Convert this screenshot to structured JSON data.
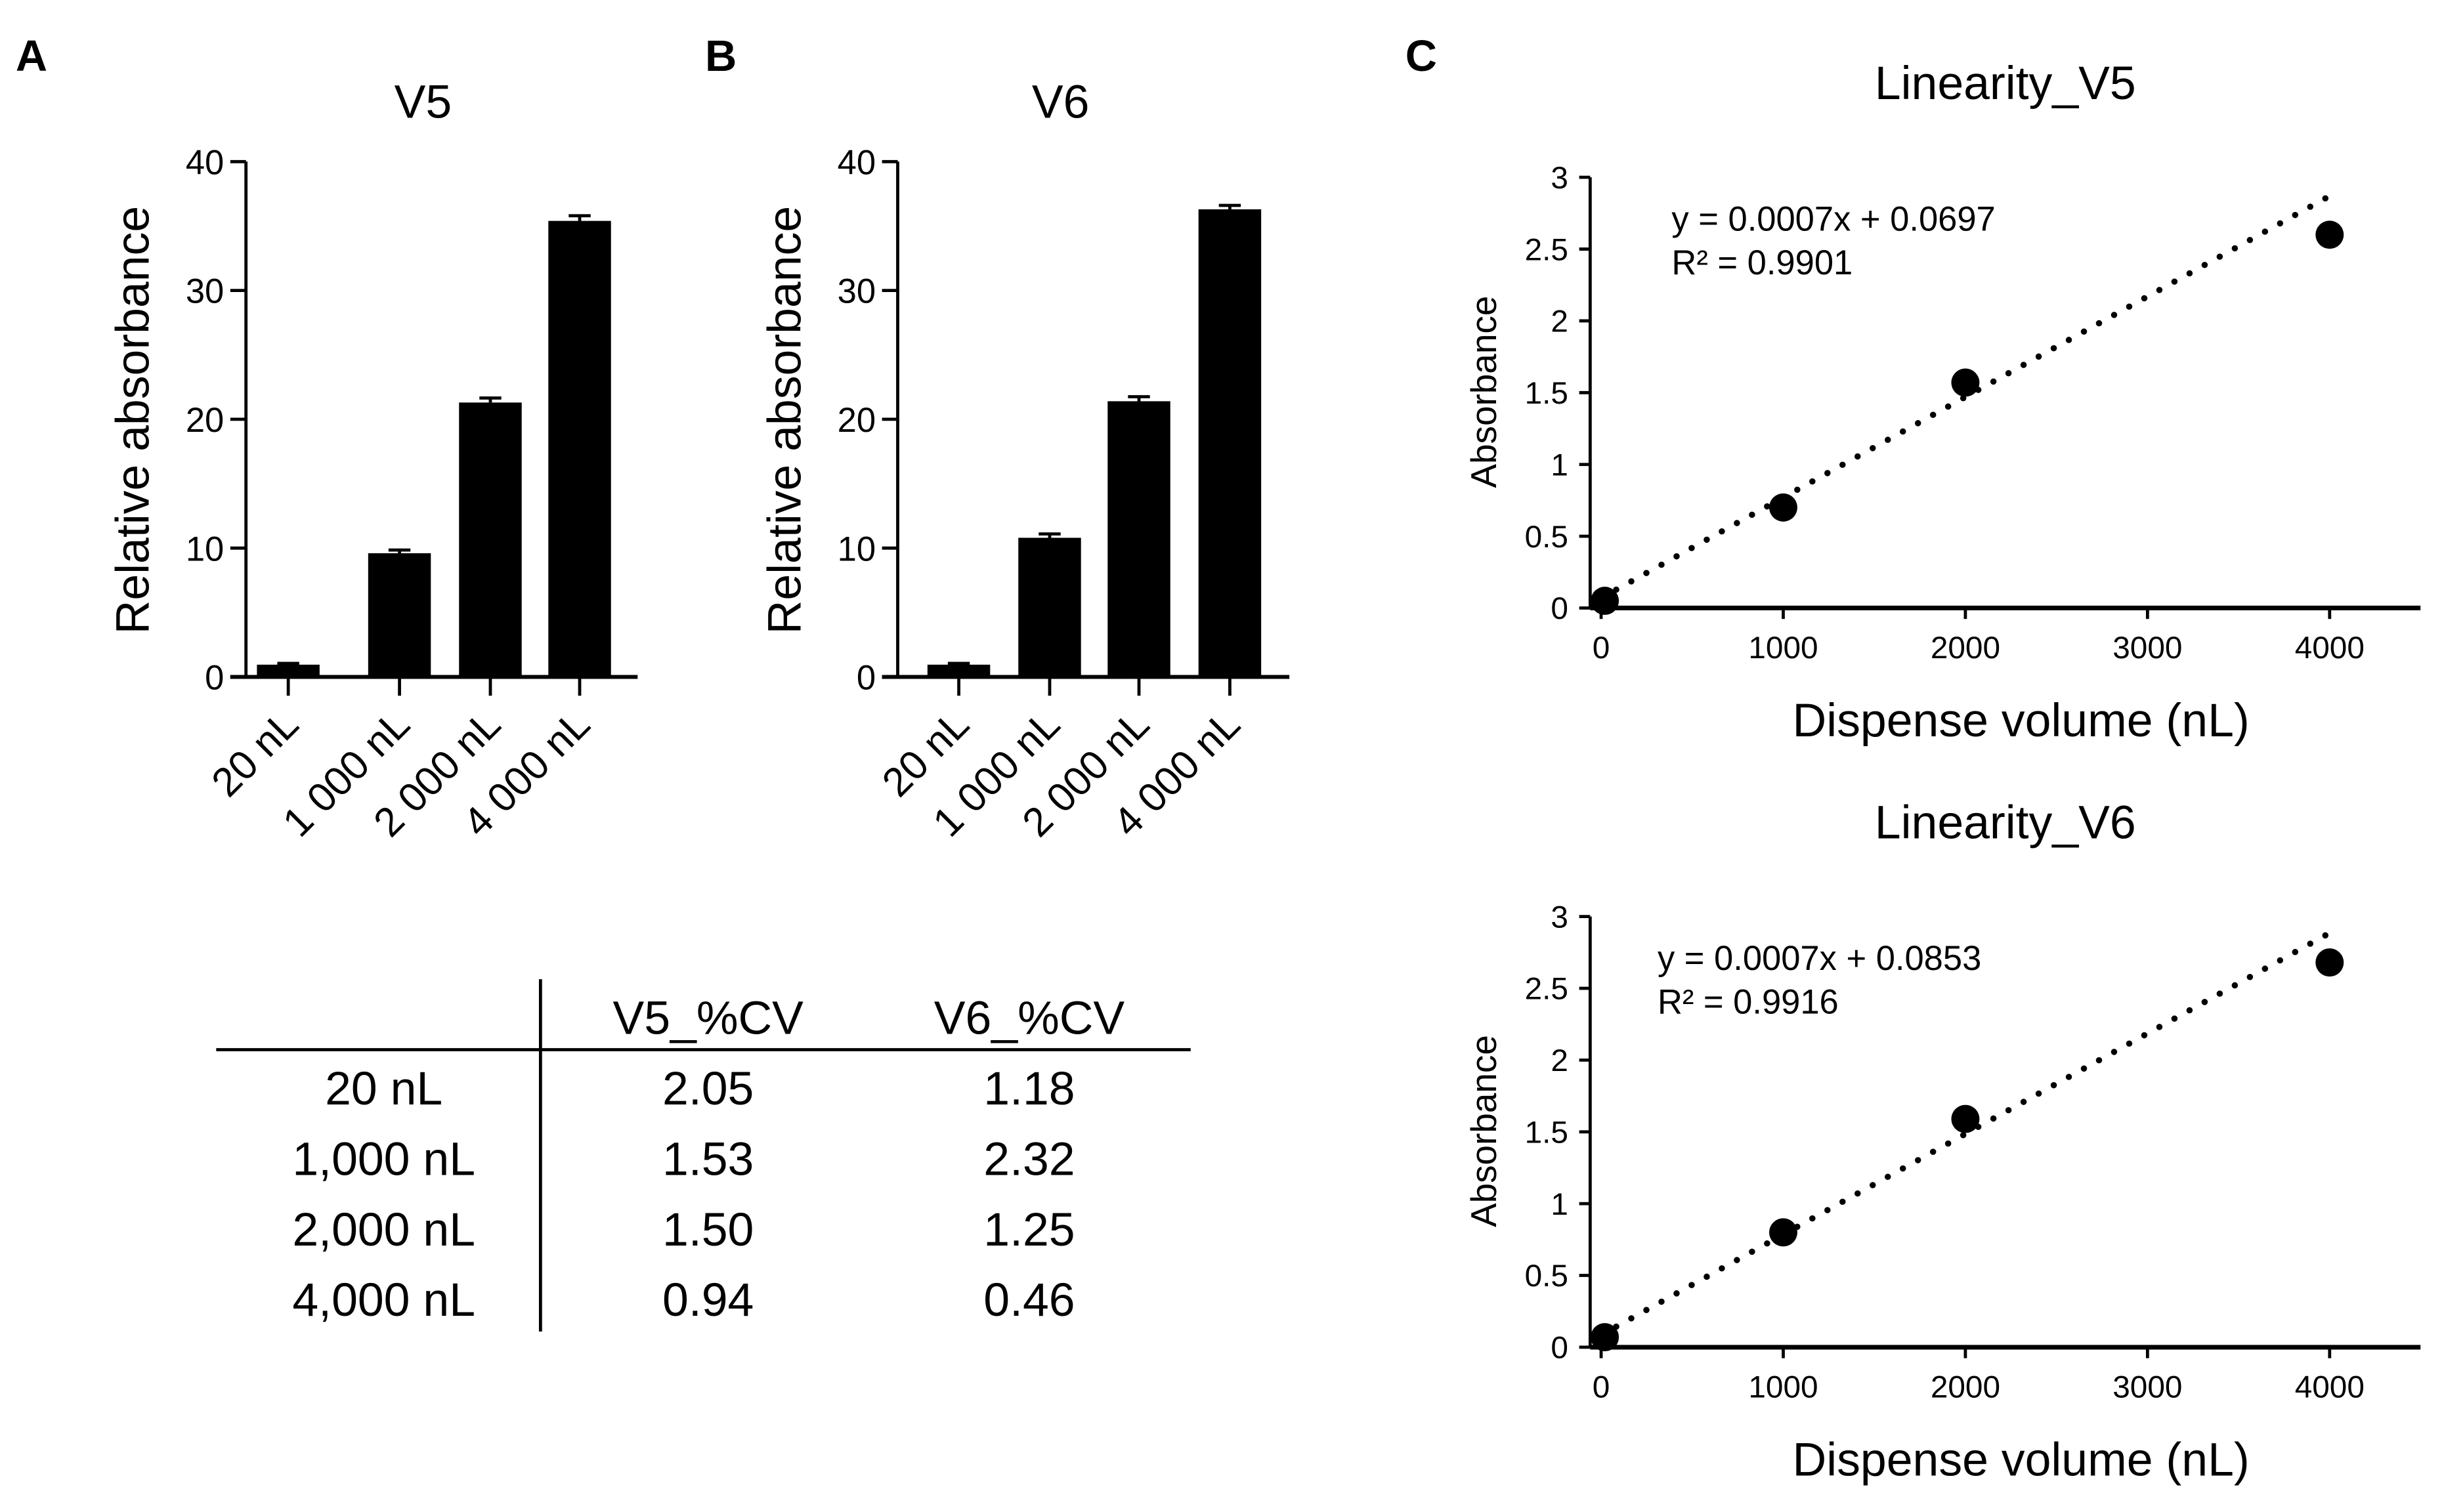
{
  "panel_labels": {
    "a": "A",
    "b": "B",
    "c": "C"
  },
  "chart_data": [
    {
      "type": "bar",
      "title": "V5",
      "ylabel": "Relative absorbance",
      "xlabel": "",
      "categories": [
        "20 nL",
        "1 000 nL",
        "2 000 nL",
        "4 000 nL"
      ],
      "values": [
        0.95,
        9.6,
        21.3,
        35.4
      ],
      "errors": [
        0.1,
        0.25,
        0.35,
        0.4
      ],
      "ylim": [
        0,
        40
      ],
      "yticks": [
        "0",
        "10",
        "20",
        "30",
        "40"
      ],
      "color": "#000000"
    },
    {
      "type": "bar",
      "title": "V6",
      "ylabel": "Relative absorbance",
      "xlabel": "",
      "categories": [
        "20 nL",
        "1 000 nL",
        "2 000 nL",
        "4 000 nL"
      ],
      "values": [
        0.95,
        10.8,
        21.4,
        36.3
      ],
      "errors": [
        0.1,
        0.3,
        0.35,
        0.3
      ],
      "ylim": [
        0,
        40
      ],
      "yticks": [
        "0",
        "10",
        "20",
        "30",
        "40"
      ],
      "color": "#000000"
    },
    {
      "type": "table",
      "columns": [
        "",
        "V5_%CV",
        "V6_%CV"
      ],
      "rows": [
        [
          "20 nL",
          "2.05",
          "1.18"
        ],
        [
          "1,000 nL",
          "1.53",
          "2.32"
        ],
        [
          "2,000 nL",
          "1.50",
          "1.25"
        ],
        [
          "4,000 nL",
          "0.94",
          "0.46"
        ]
      ]
    },
    {
      "type": "scatter",
      "title": "Linearity_V5",
      "xlabel": "Dispense volume (nL)",
      "ylabel": "Absorbance",
      "x": [
        20,
        1000,
        2000,
        4000
      ],
      "y": [
        0.05,
        0.7,
        1.57,
        2.6
      ],
      "trendline": {
        "slope": 0.0007,
        "intercept": 0.0697,
        "style": "dotted"
      },
      "equation": "y = 0.0007x + 0.0697",
      "r2": "R² = 0.9901",
      "xlim": [
        0,
        4500
      ],
      "ylim": [
        0,
        3
      ],
      "xticks": [
        "0",
        "1000",
        "2000",
        "3000",
        "4000"
      ],
      "yticks": [
        "0",
        "0.5",
        "1",
        "1.5",
        "2",
        "2.5",
        "3"
      ]
    },
    {
      "type": "scatter",
      "title": "Linearity_V6",
      "xlabel": "Dispense volume (nL)",
      "ylabel": "Absorbance",
      "x": [
        20,
        1000,
        2000,
        4000
      ],
      "y": [
        0.07,
        0.8,
        1.59,
        2.68
      ],
      "trendline": {
        "slope": 0.0007,
        "intercept": 0.0853,
        "style": "dotted"
      },
      "equation": "y = 0.0007x + 0.0853",
      "r2": "R² = 0.9916",
      "xlim": [
        0,
        4500
      ],
      "ylim": [
        0,
        3
      ],
      "xticks": [
        "0",
        "1000",
        "2000",
        "3000",
        "4000"
      ],
      "yticks": [
        "0",
        "0.5",
        "1",
        "1.5",
        "2",
        "2.5",
        "3"
      ]
    }
  ]
}
